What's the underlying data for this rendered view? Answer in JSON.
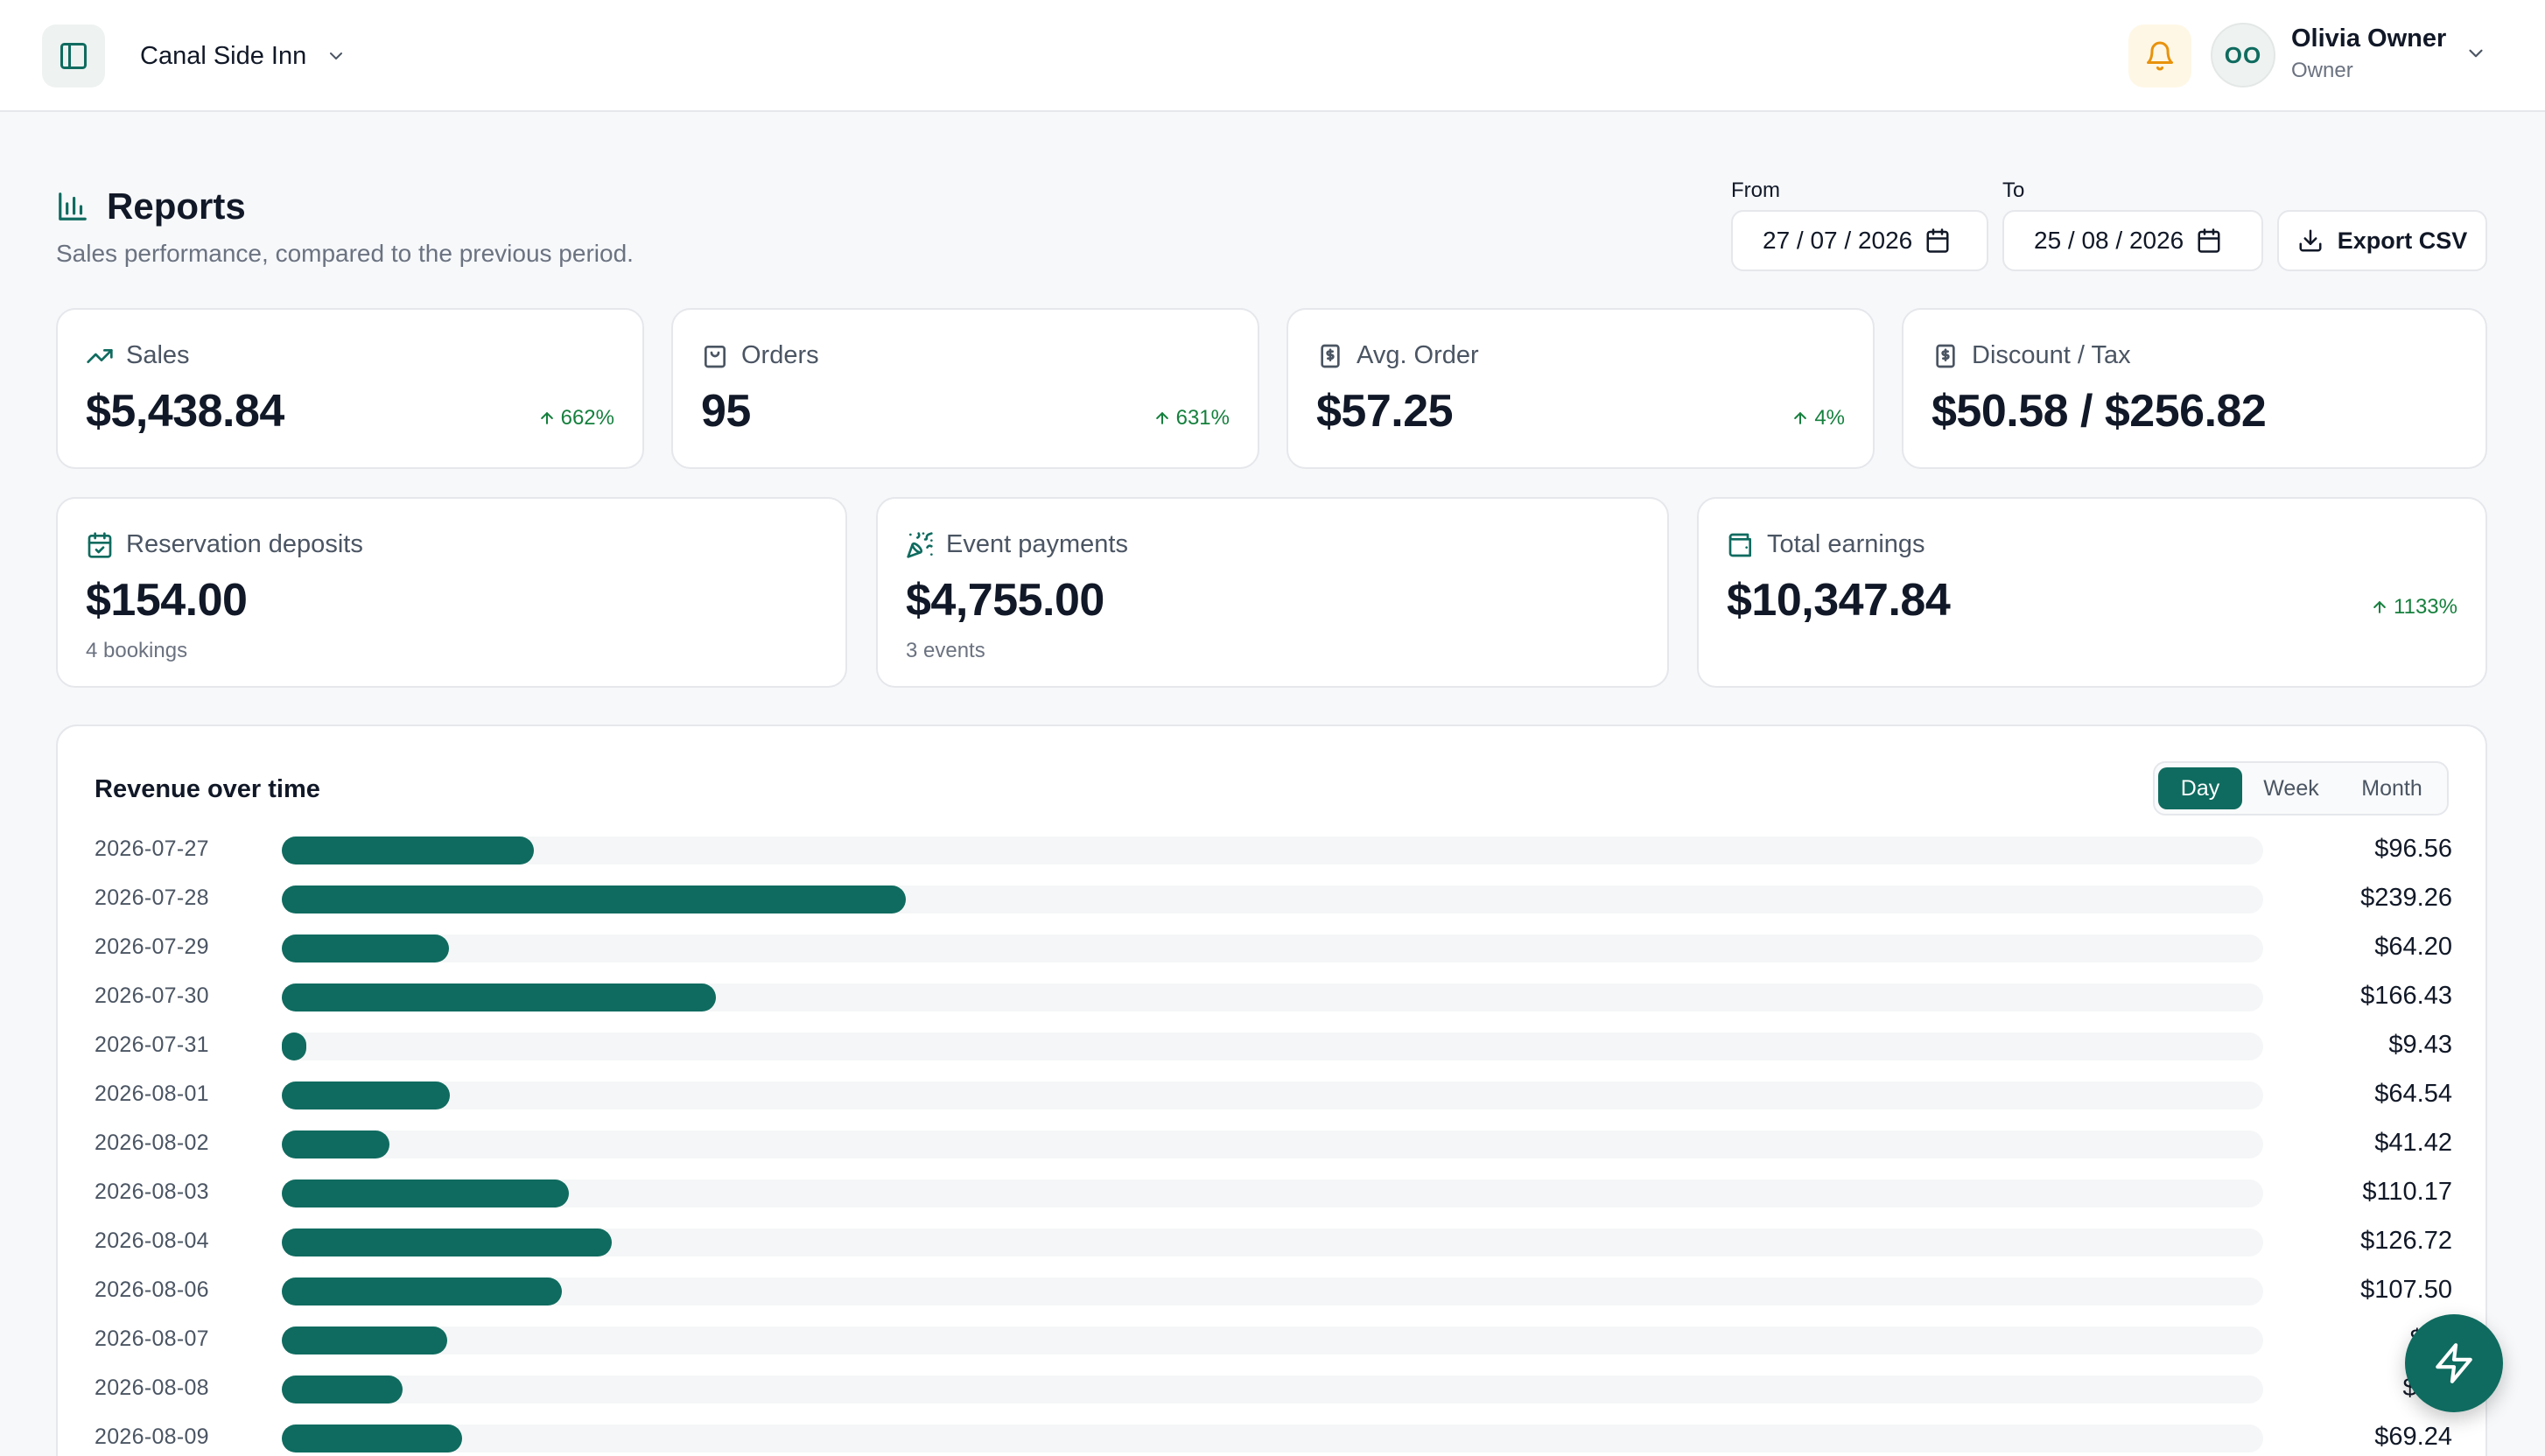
{
  "topbar": {
    "venue_name": "Canal Side Inn",
    "user_initials": "OO",
    "user_name": "Olivia Owner",
    "user_role": "Owner"
  },
  "header": {
    "title": "Reports",
    "subtitle": "Sales performance, compared to the previous period.",
    "from_label": "From",
    "from_value": "27 / 07 / 2026",
    "to_label": "To",
    "to_value": "25 / 08 / 2026",
    "export_label": "Export CSV"
  },
  "stats": [
    {
      "label": "Sales",
      "value": "$5,438.84",
      "delta": "662%",
      "icon": "trending-up-icon"
    },
    {
      "label": "Orders",
      "value": "95",
      "delta": "631%",
      "icon": "shopping-bag-icon"
    },
    {
      "label": "Avg. Order",
      "value": "$57.25",
      "delta": "4%",
      "icon": "receipt-icon"
    },
    {
      "label": "Discount / Tax",
      "value": "$50.58 / $256.82",
      "icon": "receipt-icon"
    }
  ],
  "stats2": [
    {
      "label": "Reservation deposits",
      "value": "$154.00",
      "sub": "4 bookings",
      "icon": "calendar-check-icon"
    },
    {
      "label": "Event payments",
      "value": "$4,755.00",
      "sub": "3 events",
      "icon": "party-popper-icon"
    },
    {
      "label": "Total earnings",
      "value": "$10,347.84",
      "delta": "1133%",
      "icon": "wallet-icon"
    }
  ],
  "revenue": {
    "title": "Revenue over time",
    "tabs": [
      "Day",
      "Week",
      "Month"
    ],
    "active_tab": "Day"
  },
  "colors": {
    "accent": "#0f6b5f",
    "positive": "#15803d",
    "bell": "#e8920c"
  },
  "chart_data": {
    "type": "bar",
    "orientation": "horizontal",
    "title": "Revenue over time",
    "categories": [
      "2026-07-27",
      "2026-07-28",
      "2026-07-29",
      "2026-07-30",
      "2026-07-31",
      "2026-08-01",
      "2026-08-02",
      "2026-08-03",
      "2026-08-04",
      "2026-08-06",
      "2026-08-07",
      "2026-08-08",
      "2026-08-09"
    ],
    "labels": [
      "$96.56",
      "$239.26",
      "$64.20",
      "$166.43",
      "$9.43",
      "$64.54",
      "$41.42",
      "$110.17",
      "$126.72",
      "$107.50",
      "$63",
      "$46.",
      "$69.24"
    ],
    "values": [
      96.56,
      239.26,
      64.2,
      166.43,
      9.43,
      64.54,
      41.42,
      110.17,
      126.72,
      107.5,
      63.4,
      46.3,
      69.24
    ],
    "max": 760
  }
}
